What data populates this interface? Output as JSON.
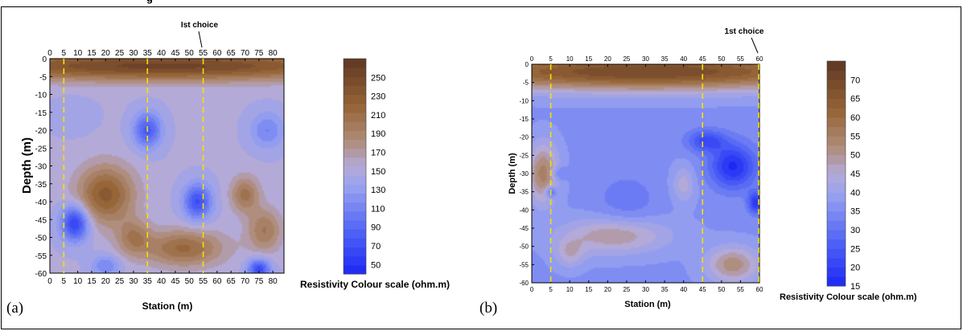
{
  "header_fragment": "g",
  "chart_data": [
    {
      "type": "heatmap",
      "panel_label": "(a)",
      "xlabel": "Station (m)",
      "ylabel": "Depth (m)",
      "xlim": [
        0,
        84
      ],
      "ylim": [
        -60,
        0
      ],
      "x_ticks": [
        0,
        5,
        10,
        15,
        20,
        25,
        30,
        35,
        40,
        45,
        50,
        55,
        60,
        65,
        70,
        75,
        80
      ],
      "y_ticks": [
        0,
        -5,
        -10,
        -15,
        -20,
        -25,
        -30,
        -35,
        -40,
        -45,
        -50,
        -55,
        -60
      ],
      "dashed_lines_x": [
        5,
        35,
        55
      ],
      "annotation": {
        "text": "Ist choice",
        "x": 55
      },
      "colorbar": {
        "label": "Resistivity Colour scale (ohm.m)",
        "min": 40,
        "max": 270,
        "ticks": [
          50,
          70,
          90,
          110,
          130,
          150,
          170,
          190,
          210,
          230,
          250
        ]
      },
      "features": [
        {
          "kind": "high",
          "x": 40,
          "y": -2,
          "sx": 80,
          "sy": 4,
          "value": 255
        },
        {
          "kind": "high",
          "x": 20,
          "y": -38,
          "sx": 10,
          "sy": 8,
          "value": 230
        },
        {
          "kind": "high",
          "x": 48,
          "y": -53,
          "sx": 14,
          "sy": 5,
          "value": 215
        },
        {
          "kind": "high",
          "x": 70,
          "y": -38,
          "sx": 5,
          "sy": 5,
          "value": 205
        },
        {
          "kind": "high",
          "x": 30,
          "y": -50,
          "sx": 6,
          "sy": 5,
          "value": 195
        },
        {
          "kind": "high",
          "x": 77,
          "y": -48,
          "sx": 6,
          "sy": 6,
          "value": 200
        },
        {
          "kind": "low",
          "x": 9,
          "y": -46,
          "sx": 5,
          "sy": 5,
          "value": 55
        },
        {
          "kind": "low",
          "x": 35,
          "y": -20,
          "sx": 5,
          "sy": 5,
          "value": 80
        },
        {
          "kind": "low",
          "x": 53,
          "y": -40,
          "sx": 5,
          "sy": 5,
          "value": 70
        },
        {
          "kind": "low",
          "x": 75,
          "y": -59,
          "sx": 4,
          "sy": 3,
          "value": 65
        },
        {
          "kind": "low",
          "x": 78,
          "y": -20,
          "sx": 6,
          "sy": 5,
          "value": 110
        },
        {
          "kind": "low",
          "x": 8,
          "y": -16,
          "sx": 8,
          "sy": 5,
          "value": 140
        },
        {
          "kind": "low",
          "x": 20,
          "y": -58,
          "sx": 5,
          "sy": 3,
          "value": 110
        }
      ],
      "background_value": 150
    },
    {
      "type": "heatmap",
      "panel_label": "(b)",
      "xlabel": "Station (m)",
      "ylabel": "Depth (m)",
      "xlim": [
        0,
        60
      ],
      "ylim": [
        -60,
        0
      ],
      "x_ticks": [
        0,
        5,
        10,
        15,
        20,
        25,
        30,
        35,
        40,
        45,
        50,
        55,
        60
      ],
      "y_ticks": [
        0,
        -5,
        -10,
        -15,
        -20,
        -25,
        -30,
        -35,
        -40,
        -45,
        -50,
        -55,
        -60
      ],
      "dashed_lines_x": [
        5,
        45,
        60
      ],
      "annotation": {
        "text": "1st choice",
        "x": 60
      },
      "colorbar": {
        "label": "Resistivity Colour scale (ohm.m)",
        "min": 15,
        "max": 75,
        "ticks": [
          15,
          20,
          25,
          30,
          35,
          40,
          45,
          50,
          55,
          60,
          65,
          70
        ]
      },
      "features": [
        {
          "kind": "high",
          "x": 30,
          "y": -2,
          "sx": 60,
          "sy": 5,
          "value": 70
        },
        {
          "kind": "high",
          "x": 3,
          "y": -30,
          "sx": 4,
          "sy": 8,
          "value": 55
        },
        {
          "kind": "high",
          "x": 22,
          "y": -47,
          "sx": 14,
          "sy": 5,
          "value": 50
        },
        {
          "kind": "high",
          "x": 53,
          "y": -55,
          "sx": 7,
          "sy": 5,
          "value": 52
        },
        {
          "kind": "high",
          "x": 10,
          "y": -52,
          "sx": 4,
          "sy": 4,
          "value": 45
        },
        {
          "kind": "high",
          "x": 40,
          "y": -33,
          "sx": 3,
          "sy": 5,
          "value": 45
        },
        {
          "kind": "low",
          "x": 53,
          "y": -28,
          "sx": 6,
          "sy": 6,
          "value": 16
        },
        {
          "kind": "low",
          "x": 46,
          "y": -21,
          "sx": 5,
          "sy": 3,
          "value": 22
        },
        {
          "kind": "low",
          "x": 59,
          "y": -38,
          "sx": 2,
          "sy": 3,
          "value": 18
        },
        {
          "kind": "low",
          "x": 5,
          "y": -35,
          "sx": 1.5,
          "sy": 1.5,
          "value": 22
        },
        {
          "kind": "low",
          "x": 7,
          "y": -30,
          "sx": 2,
          "sy": 2,
          "value": 28
        },
        {
          "kind": "low",
          "x": 25,
          "y": -38,
          "sx": 8,
          "sy": 8,
          "value": 31
        }
      ],
      "background_value": 36
    }
  ]
}
